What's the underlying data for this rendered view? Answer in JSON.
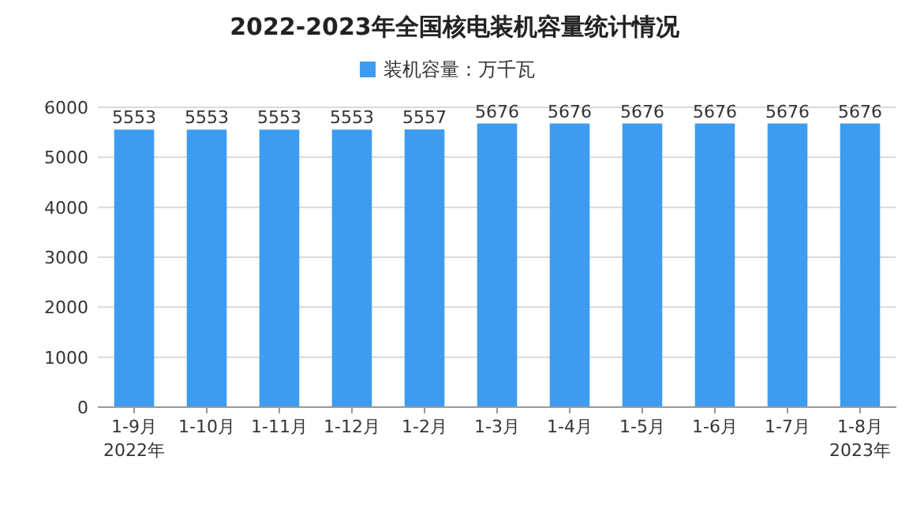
{
  "chart_data": {
    "type": "bar",
    "title": "2022-2023年全国核电装机容量统计情况",
    "categories": [
      "1-9月\n2022年",
      "1-10月",
      "1-11月",
      "1-12月",
      "1-2月",
      "1-3月",
      "1-4月",
      "1-5月",
      "1-6月",
      "1-7月",
      "1-8月\n2023年"
    ],
    "series": [
      {
        "name": "装机容量：万千瓦",
        "color": "#3d9cf0",
        "values": [
          5553,
          5553,
          5553,
          5553,
          5557,
          5676,
          5676,
          5676,
          5676,
          5676,
          5676
        ]
      }
    ],
    "ylim": [
      0,
      6000
    ],
    "yticks": [
      0,
      1000,
      2000,
      3000,
      4000,
      5000,
      6000
    ],
    "grid": "y",
    "legend": "top",
    "data_labels": true
  }
}
